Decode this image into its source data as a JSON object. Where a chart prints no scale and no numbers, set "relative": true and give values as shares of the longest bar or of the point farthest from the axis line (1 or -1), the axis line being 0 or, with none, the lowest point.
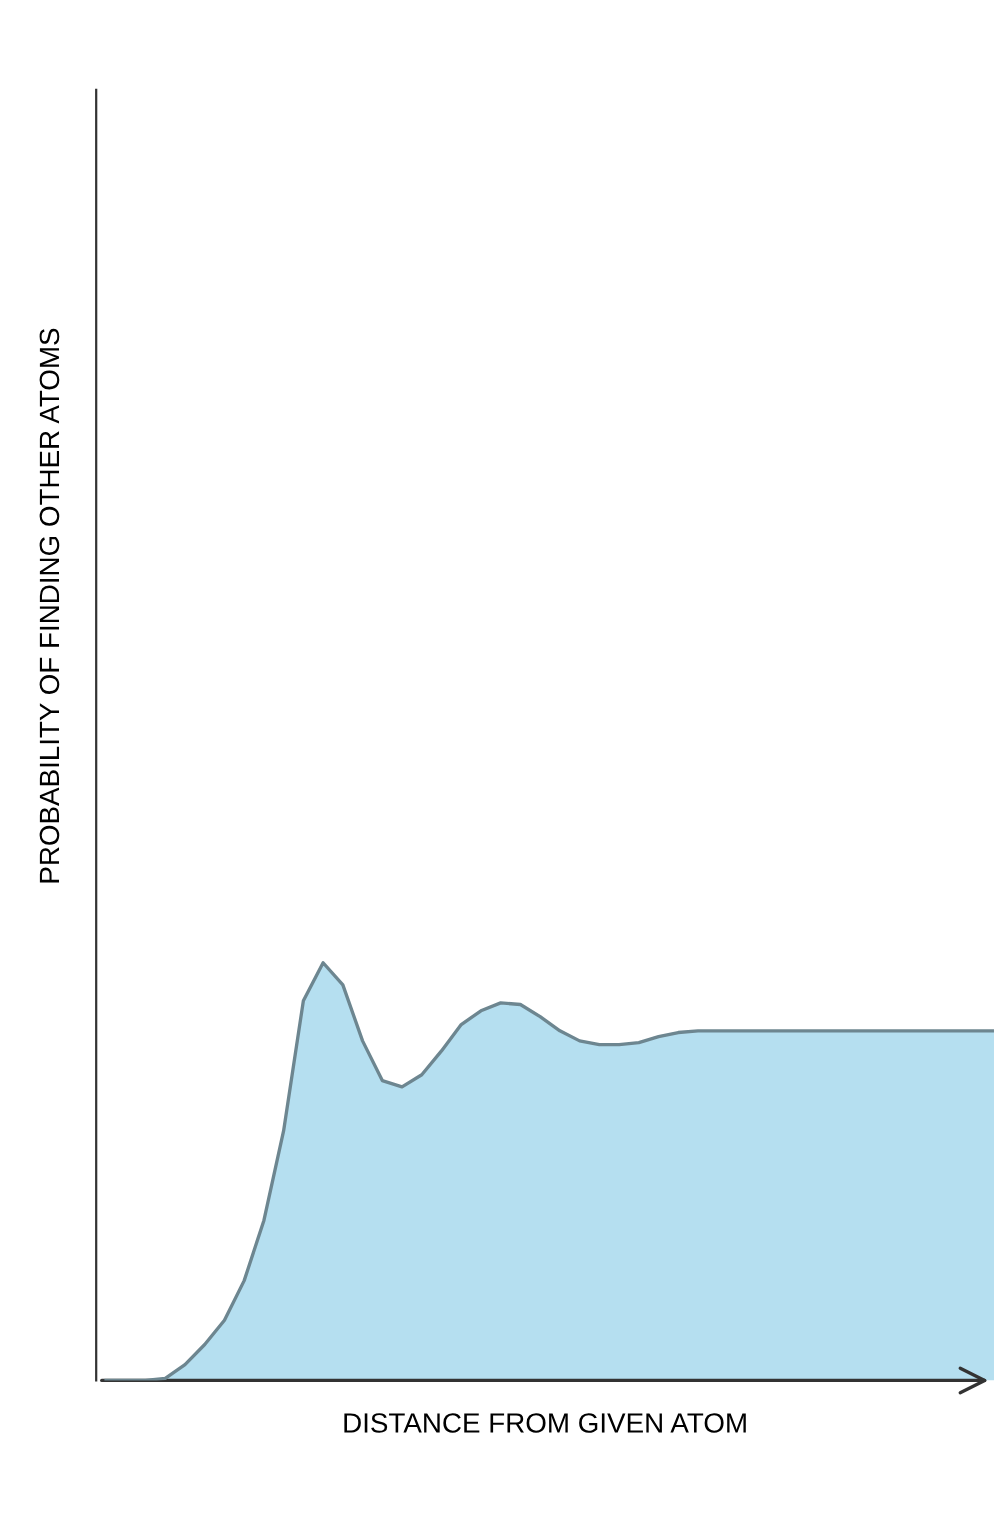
{
  "chart_data": {
    "type": "area",
    "relative": true,
    "xlabel": "DISTANCE FROM GIVEN ATOM",
    "ylabel": "PROBABILITY OF FINDING OTHER ATOMS",
    "categories": [
      null,
      null,
      null,
      null,
      null,
      null,
      null,
      null,
      null,
      null,
      null,
      null,
      null,
      null,
      null,
      null,
      null,
      null,
      null,
      null,
      null,
      null,
      null,
      null,
      null,
      null,
      null,
      null,
      null,
      null,
      null,
      null,
      null,
      null,
      null,
      null,
      null,
      null,
      null,
      null,
      null,
      null,
      null,
      null,
      null,
      null
    ],
    "series": [
      {
        "color": "#b5dff0",
        "values": [
          0,
          0,
          0,
          0.005,
          0.038,
          0.086,
          0.144,
          0.239,
          0.383,
          0.598,
          0.909,
          1,
          0.947,
          0.813,
          0.718,
          0.703,
          0.732,
          0.789,
          0.852,
          0.885,
          0.904,
          0.9,
          0.871,
          0.837,
          0.813,
          0.804,
          0.804,
          0.809,
          0.823,
          0.833,
          0.837,
          0.837,
          0.837,
          0.837,
          0.837,
          0.837,
          0.837,
          0.837,
          0.837,
          0.837,
          0.837,
          0.837,
          0.837,
          0.837,
          0.837,
          0.837
        ]
      }
    ]
  }
}
